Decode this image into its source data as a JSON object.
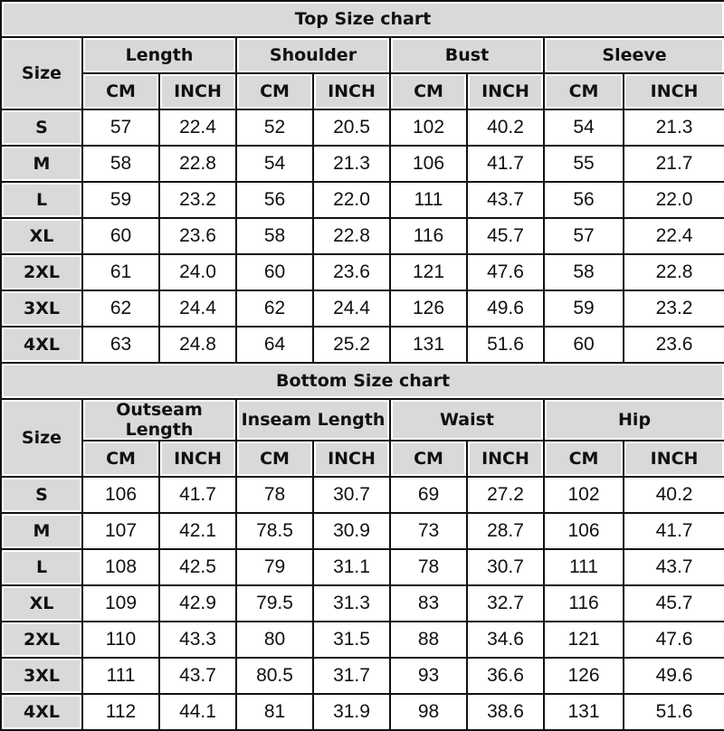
{
  "unit_labels": {
    "cm": "CM",
    "inch": "INCH"
  },
  "size_label": "Size",
  "sizes": [
    "S",
    "M",
    "L",
    "XL",
    "2XL",
    "3XL",
    "4XL"
  ],
  "charts": [
    {
      "title": "Top Size chart",
      "groups": [
        "Length",
        "Shoulder",
        "Bust",
        "Sleeve"
      ],
      "rows": [
        [
          "57",
          "22.4",
          "52",
          "20.5",
          "102",
          "40.2",
          "54",
          "21.3"
        ],
        [
          "58",
          "22.8",
          "54",
          "21.3",
          "106",
          "41.7",
          "55",
          "21.7"
        ],
        [
          "59",
          "23.2",
          "56",
          "22.0",
          "111",
          "43.7",
          "56",
          "22.0"
        ],
        [
          "60",
          "23.6",
          "58",
          "22.8",
          "116",
          "45.7",
          "57",
          "22.4"
        ],
        [
          "61",
          "24.0",
          "60",
          "23.6",
          "121",
          "47.6",
          "58",
          "22.8"
        ],
        [
          "62",
          "24.4",
          "62",
          "24.4",
          "126",
          "49.6",
          "59",
          "23.2"
        ],
        [
          "63",
          "24.8",
          "64",
          "25.2",
          "131",
          "51.6",
          "60",
          "23.6"
        ]
      ]
    },
    {
      "title": "Bottom Size chart",
      "groups": [
        "Outseam Length",
        "Inseam Length",
        "Waist",
        "Hip"
      ],
      "rows": [
        [
          "106",
          "41.7",
          "78",
          "30.7",
          "69",
          "27.2",
          "102",
          "40.2"
        ],
        [
          "107",
          "42.1",
          "78.5",
          "30.9",
          "73",
          "28.7",
          "106",
          "41.7"
        ],
        [
          "108",
          "42.5",
          "79",
          "31.1",
          "78",
          "30.7",
          "111",
          "43.7"
        ],
        [
          "109",
          "42.9",
          "79.5",
          "31.3",
          "83",
          "32.7",
          "116",
          "45.7"
        ],
        [
          "110",
          "43.3",
          "80",
          "31.5",
          "88",
          "34.6",
          "121",
          "47.6"
        ],
        [
          "111",
          "43.7",
          "80.5",
          "31.7",
          "93",
          "36.6",
          "126",
          "49.6"
        ],
        [
          "112",
          "44.1",
          "81",
          "31.9",
          "98",
          "38.6",
          "131",
          "51.6"
        ]
      ]
    }
  ]
}
